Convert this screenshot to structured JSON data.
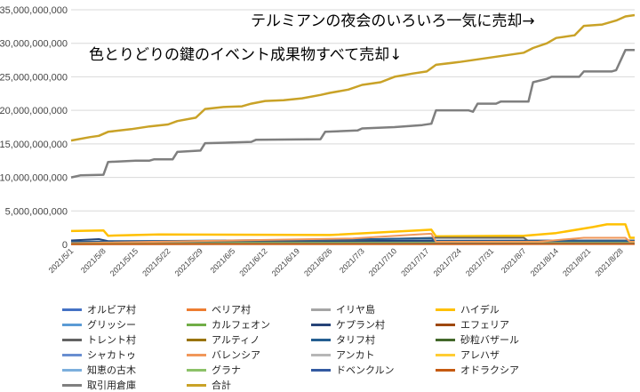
{
  "chart_data": {
    "type": "line",
    "annotations": [
      "テルミアンの夜会のいろいろ一気に売却→",
      "色とりどりの鍵のイベント成果物すべて売却↓"
    ],
    "y_ticks": [
      "0",
      "5,000,000,000",
      "10,000,000,000",
      "15,000,000,000",
      "20,000,000,000",
      "25,000,000,000",
      "30,000,000,000",
      "35,000,000,000"
    ],
    "ylim": [
      0,
      35000000000
    ],
    "x_ticks": [
      "2021/5/1",
      "2021/5/8",
      "2021/5/15",
      "2021/5/22",
      "2021/5/29",
      "2021/6/5",
      "2021/6/12",
      "2021/6/19",
      "2021/6/26",
      "2021/7/3",
      "2021/7/10",
      "2021/7/17",
      "2021/7/24",
      "2021/7/31",
      "2021/8/7",
      "2021/8/14",
      "2021/8/21",
      "2021/8/28"
    ],
    "xlim": [
      "2021/5/1",
      "2021/8/31"
    ],
    "grid": true,
    "legend_position": "bottom",
    "series": [
      {
        "name": "オルビア村",
        "color": "#4472c4",
        "points": [
          [
            "2021/5/1",
            300000000
          ],
          [
            "2021/8/31",
            350000000
          ]
        ]
      },
      {
        "name": "ベリア村",
        "color": "#ed7d31",
        "points": [
          [
            "2021/5/1",
            150000000
          ],
          [
            "2021/8/31",
            200000000
          ]
        ]
      },
      {
        "name": "イリヤ島",
        "color": "#a5a5a5",
        "points": [
          [
            "2021/5/1",
            100000000
          ],
          [
            "2021/8/31",
            150000000
          ]
        ]
      },
      {
        "name": "ハイデル",
        "color": "#ffc000",
        "points": [
          [
            "2021/5/1",
            2000000000
          ],
          [
            "2021/5/8",
            2100000000
          ],
          [
            "2021/5/9",
            1300000000
          ],
          [
            "2021/5/20",
            1500000000
          ],
          [
            "2021/6/26",
            1400000000
          ],
          [
            "2021/7/15",
            2100000000
          ],
          [
            "2021/7/18",
            2200000000
          ],
          [
            "2021/7/19",
            1200000000
          ],
          [
            "2021/8/7",
            1300000000
          ],
          [
            "2021/8/14",
            1700000000
          ],
          [
            "2021/8/22",
            2600000000
          ],
          [
            "2021/8/25",
            3000000000
          ],
          [
            "2021/8/29",
            3000000000
          ],
          [
            "2021/8/30",
            1000000000
          ],
          [
            "2021/8/31",
            1000000000
          ]
        ]
      },
      {
        "name": "グリッシー",
        "color": "#5b9bd5",
        "points": [
          [
            "2021/5/1",
            200000000
          ],
          [
            "2021/8/31",
            250000000
          ]
        ]
      },
      {
        "name": "カルフェオン",
        "color": "#70ad47",
        "points": [
          [
            "2021/5/1",
            250000000
          ],
          [
            "2021/8/31",
            300000000
          ]
        ]
      },
      {
        "name": "ケプラン村",
        "color": "#264478",
        "points": [
          [
            "2021/5/1",
            600000000
          ],
          [
            "2021/5/7",
            800000000
          ],
          [
            "2021/5/9",
            500000000
          ],
          [
            "2021/8/31",
            600000000
          ]
        ]
      },
      {
        "name": "エフェリア",
        "color": "#9e480e",
        "points": [
          [
            "2021/5/1",
            50000000
          ],
          [
            "2021/8/31",
            80000000
          ]
        ]
      },
      {
        "name": "トレント村",
        "color": "#636363",
        "points": [
          [
            "2021/5/1",
            300000000
          ],
          [
            "2021/6/1",
            500000000
          ],
          [
            "2021/7/1",
            700000000
          ],
          [
            "2021/7/18",
            1000000000
          ],
          [
            "2021/8/7",
            1000000000
          ],
          [
            "2021/8/8",
            500000000
          ],
          [
            "2021/8/31",
            600000000
          ]
        ]
      },
      {
        "name": "アルティノ",
        "color": "#997300",
        "points": [
          [
            "2021/5/1",
            100000000
          ],
          [
            "2021/8/31",
            150000000
          ]
        ]
      },
      {
        "name": "タリフ村",
        "color": "#255e91",
        "points": [
          [
            "2021/5/1",
            400000000
          ],
          [
            "2021/7/5",
            800000000
          ],
          [
            "2021/7/18",
            900000000
          ],
          [
            "2021/7/19",
            500000000
          ],
          [
            "2021/8/31",
            500000000
          ]
        ]
      },
      {
        "name": "砂粒バザール",
        "color": "#43682b",
        "points": [
          [
            "2021/5/1",
            80000000
          ],
          [
            "2021/8/31",
            120000000
          ]
        ]
      },
      {
        "name": "シャカトゥ",
        "color": "#698ed0",
        "points": [
          [
            "2021/5/1",
            150000000
          ],
          [
            "2021/8/31",
            200000000
          ]
        ]
      },
      {
        "name": "バレンシア",
        "color": "#f1975a",
        "points": [
          [
            "2021/5/1",
            200000000
          ],
          [
            "2021/7/1",
            900000000
          ],
          [
            "2021/7/15",
            1500000000
          ],
          [
            "2021/7/18",
            1600000000
          ],
          [
            "2021/7/19",
            400000000
          ],
          [
            "2021/8/10",
            400000000
          ],
          [
            "2021/8/20",
            1000000000
          ],
          [
            "2021/8/29",
            1000000000
          ],
          [
            "2021/8/30",
            400000000
          ],
          [
            "2021/8/31",
            400000000
          ]
        ]
      },
      {
        "name": "アンカト",
        "color": "#b7b7b7",
        "points": [
          [
            "2021/5/1",
            100000000
          ],
          [
            "2021/8/31",
            150000000
          ]
        ]
      },
      {
        "name": "アレハザ",
        "color": "#ffcd33",
        "points": [
          [
            "2021/5/1",
            120000000
          ],
          [
            "2021/8/31",
            180000000
          ]
        ]
      },
      {
        "name": "知恵の古木",
        "color": "#7cafdd",
        "points": [
          [
            "2021/5/1",
            60000000
          ],
          [
            "2021/8/31",
            90000000
          ]
        ]
      },
      {
        "name": "グラナ",
        "color": "#8cc168",
        "points": [
          [
            "2021/5/1",
            90000000
          ],
          [
            "2021/8/31",
            140000000
          ]
        ]
      },
      {
        "name": "ドベンクルン",
        "color": "#335aa1",
        "points": [
          [
            "2021/5/1",
            70000000
          ],
          [
            "2021/8/31",
            100000000
          ]
        ]
      },
      {
        "name": "オドラクシア",
        "color": "#c55a11",
        "points": [
          [
            "2021/5/1",
            40000000
          ],
          [
            "2021/8/31",
            60000000
          ]
        ]
      },
      {
        "name": "取引用倉庫",
        "color": "#7f7f7f",
        "points": [
          [
            "2021/5/1",
            10000000000
          ],
          [
            "2021/5/3",
            10300000000
          ],
          [
            "2021/5/8",
            10400000000
          ],
          [
            "2021/5/9",
            12300000000
          ],
          [
            "2021/5/15",
            12500000000
          ],
          [
            "2021/5/18",
            12500000000
          ],
          [
            "2021/5/19",
            12700000000
          ],
          [
            "2021/5/23",
            12700000000
          ],
          [
            "2021/5/24",
            13800000000
          ],
          [
            "2021/5/29",
            14000000000
          ],
          [
            "2021/5/30",
            15100000000
          ],
          [
            "2021/6/5",
            15200000000
          ],
          [
            "2021/6/9",
            15300000000
          ],
          [
            "2021/6/10",
            15600000000
          ],
          [
            "2021/6/24",
            15700000000
          ],
          [
            "2021/6/25",
            16800000000
          ],
          [
            "2021/7/2",
            17000000000
          ],
          [
            "2021/7/3",
            17300000000
          ],
          [
            "2021/7/10",
            17500000000
          ],
          [
            "2021/7/16",
            17800000000
          ],
          [
            "2021/7/18",
            18000000000
          ],
          [
            "2021/7/19",
            20000000000
          ],
          [
            "2021/7/26",
            20000000000
          ],
          [
            "2021/7/27",
            19800000000
          ],
          [
            "2021/7/28",
            21000000000
          ],
          [
            "2021/8/1",
            21000000000
          ],
          [
            "2021/8/2",
            21300000000
          ],
          [
            "2021/8/8",
            21300000000
          ],
          [
            "2021/8/9",
            24200000000
          ],
          [
            "2021/8/12",
            24700000000
          ],
          [
            "2021/8/13",
            25000000000
          ],
          [
            "2021/8/19",
            25000000000
          ],
          [
            "2021/8/20",
            25800000000
          ],
          [
            "2021/8/26",
            25800000000
          ],
          [
            "2021/8/27",
            26000000000
          ],
          [
            "2021/8/29",
            29000000000
          ],
          [
            "2021/8/31",
            29000000000
          ]
        ]
      },
      {
        "name": "合計",
        "color": "#c9a227",
        "points": [
          [
            "2021/5/1",
            15500000000
          ],
          [
            "2021/5/5",
            16000000000
          ],
          [
            "2021/5/7",
            16200000000
          ],
          [
            "2021/5/9",
            16800000000
          ],
          [
            "2021/5/14",
            17200000000
          ],
          [
            "2021/5/18",
            17600000000
          ],
          [
            "2021/5/22",
            17900000000
          ],
          [
            "2021/5/24",
            18400000000
          ],
          [
            "2021/5/28",
            18900000000
          ],
          [
            "2021/5/30",
            20200000000
          ],
          [
            "2021/6/3",
            20500000000
          ],
          [
            "2021/6/7",
            20600000000
          ],
          [
            "2021/6/9",
            21000000000
          ],
          [
            "2021/6/12",
            21400000000
          ],
          [
            "2021/6/16",
            21500000000
          ],
          [
            "2021/6/20",
            21800000000
          ],
          [
            "2021/6/24",
            22300000000
          ],
          [
            "2021/6/26",
            22600000000
          ],
          [
            "2021/6/30",
            23100000000
          ],
          [
            "2021/7/3",
            23800000000
          ],
          [
            "2021/7/7",
            24200000000
          ],
          [
            "2021/7/10",
            25000000000
          ],
          [
            "2021/7/14",
            25500000000
          ],
          [
            "2021/7/17",
            25800000000
          ],
          [
            "2021/7/19",
            26800000000
          ],
          [
            "2021/7/24",
            27200000000
          ],
          [
            "2021/7/28",
            27600000000
          ],
          [
            "2021/8/1",
            28000000000
          ],
          [
            "2021/8/5",
            28400000000
          ],
          [
            "2021/8/7",
            28600000000
          ],
          [
            "2021/8/9",
            29300000000
          ],
          [
            "2021/8/12",
            30000000000
          ],
          [
            "2021/8/14",
            30800000000
          ],
          [
            "2021/8/18",
            31200000000
          ],
          [
            "2021/8/20",
            32600000000
          ],
          [
            "2021/8/24",
            32800000000
          ],
          [
            "2021/8/27",
            33400000000
          ],
          [
            "2021/8/29",
            34000000000
          ],
          [
            "2021/8/31",
            34200000000
          ]
        ]
      }
    ]
  }
}
